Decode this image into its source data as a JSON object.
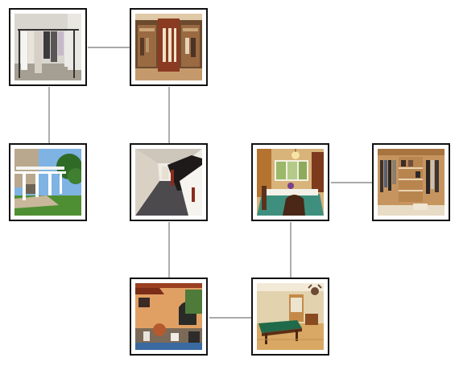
{
  "diagram": {
    "nodes": [
      {
        "id": "clothing-rack",
        "depicts": "clothing-rack-icon"
      },
      {
        "id": "walk-in-closet",
        "depicts": "walk-in-closet-icon"
      },
      {
        "id": "pergola",
        "depicts": "pergola-icon"
      },
      {
        "id": "hallway",
        "depicts": "hallway-icon"
      },
      {
        "id": "dining-room",
        "depicts": "dining-room-icon"
      },
      {
        "id": "closet-shelving",
        "depicts": "closet-shelving-icon"
      },
      {
        "id": "courtyard-patio",
        "depicts": "courtyard-patio-icon"
      },
      {
        "id": "billiard-room",
        "depicts": "billiard-room-icon"
      }
    ],
    "edges": [
      [
        "clothing-rack",
        "walk-in-closet"
      ],
      [
        "clothing-rack",
        "pergola"
      ],
      [
        "walk-in-closet",
        "hallway"
      ],
      [
        "hallway",
        "courtyard-patio"
      ],
      [
        "courtyard-patio",
        "billiard-room"
      ],
      [
        "billiard-room",
        "dining-room"
      ],
      [
        "dining-room",
        "closet-shelving"
      ]
    ],
    "colors": {
      "frame": "#111111",
      "connector": "#777777",
      "background": "#ffffff"
    }
  }
}
